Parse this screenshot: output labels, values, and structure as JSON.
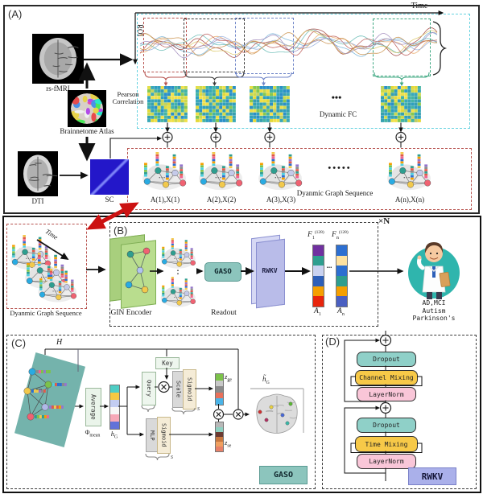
{
  "a": {
    "label": "(A)",
    "rs_fmri": "rs-fMRI",
    "atlas": "Brainnetome Atlas",
    "dti": "DTI",
    "sc": "SC",
    "roi": "ROI",
    "time": "Time",
    "pearson_1": "Pearson",
    "pearson_2": "Correlation",
    "dynamic_fc": "Dynamic FC",
    "fc_dots": "•••",
    "graph_dots": "•••••",
    "dgs": "Dyanmic Graph Sequence",
    "graph_labels": [
      "A(1),X(1)",
      "A(2),X(2)",
      "A(3),X(3)",
      "A(n),X(n)"
    ]
  },
  "b": {
    "label": "(B)",
    "dgs": "Dyanmic Graph Sequence",
    "time": "Time",
    "time_dots": "⋯",
    "gin": "GIN Encoder",
    "gaso": "GASO",
    "rwkv": "RWKV",
    "readout": "Readout",
    "xn": "×N",
    "stack_dots": "⋮",
    "bar_dots": "...",
    "f1": {
      "base": "F",
      "sub": "1",
      "sup": "(128)"
    },
    "fn": {
      "base": "F",
      "sub": "n",
      "sup": "(128)"
    },
    "a1": {
      "base": "A",
      "sub": "1"
    },
    "an": {
      "base": "A",
      "sub": "n"
    },
    "diagnosis": [
      "AD,MCI",
      "Autism",
      "Parkinson's"
    ]
  },
  "c": {
    "label": "(C)",
    "h": "H",
    "average": "Average",
    "phi": {
      "base": "Φ",
      "sub": "mean"
    },
    "hg": {
      "base": "h",
      "sub": "G"
    },
    "query": "Query",
    "key": "Key",
    "scale": "Scale",
    "sigmoid": "Sigmoid",
    "mlp": "MLP",
    "zge": {
      "base": "z",
      "sub": "ge"
    },
    "zse": {
      "base": "z",
      "sub": "se"
    },
    "htilde": {
      "base": "h̃",
      "sub": "G"
    },
    "s": "s",
    "gaso_tag": "GASO"
  },
  "d": {
    "label": "(D)",
    "dropout": "Dropout",
    "channel_mixing": "Channel Mixing",
    "layernorm": "LayerNorm",
    "time_mixing": "Time Mixing",
    "rwkv_tag": "RWKV"
  },
  "colors": {
    "cyan_dash": "#66d2e0",
    "red_dash": "#b85450",
    "blue_dash": "#7086c8",
    "green_dash": "#3fa882",
    "gaso_teal": "#8cc5bd",
    "rwkv_lavender": "#b9bce9",
    "gin_green": "#b9dd8e",
    "dropout_teal": "#8fd0c8",
    "mixing_yellow": "#f7c948",
    "layernorm_pink": "#f9c6d8",
    "doctor_teal": "#2fb5ad",
    "sc_blue": "#2317c9",
    "f1_bar": [
      "#7030a0",
      "#2e9e8f",
      "#c9d2f0",
      "#2d5fb8",
      "#f59f00",
      "#e8250c"
    ],
    "fn_bar": [
      "#2d6fd1",
      "#ffe2a0",
      "#2d6fd1",
      "#2e9e8f",
      "#f59f00",
      "#4a5fc1"
    ],
    "hg_bar": [
      "#4ecdc4",
      "#f5c842",
      "#c3cdf2",
      "#f7f7f7",
      "#f7a8b8",
      "#6272d8"
    ],
    "zge_bar": [
      "#7cc24a",
      "#c8c8c8",
      "#8a8a8a",
      "#e8705a",
      "#4ab4e8"
    ],
    "zse_bar": [
      "#b8b8b8",
      "#8fd0c0",
      "#6b3a32",
      "#c87840",
      "#f0a060",
      "#e88068"
    ]
  }
}
